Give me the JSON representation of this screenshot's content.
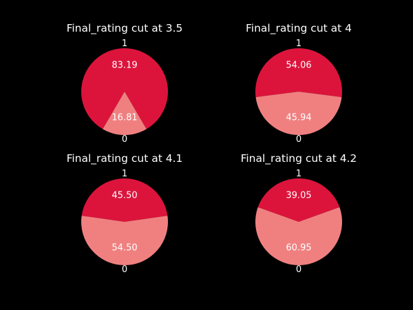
{
  "background_color": "#000000",
  "chart_data": [
    {
      "type": "pie",
      "title": "Final_rating cut at 3.5",
      "slices": [
        {
          "label": "1",
          "value": 83.19,
          "display": "83.19",
          "color": "#dc143c"
        },
        {
          "label": "0",
          "value": 16.81,
          "display": "16.81",
          "color": "#f08080"
        }
      ]
    },
    {
      "type": "pie",
      "title": "Final_rating cut at 4",
      "slices": [
        {
          "label": "1",
          "value": 54.06,
          "display": "54.06",
          "color": "#dc143c"
        },
        {
          "label": "0",
          "value": 45.94,
          "display": "45.94",
          "color": "#f08080"
        }
      ]
    },
    {
      "type": "pie",
      "title": "Final_rating cut at 4.1",
      "slices": [
        {
          "label": "1",
          "value": 45.5,
          "display": "45.50",
          "color": "#dc143c"
        },
        {
          "label": "0",
          "value": 54.5,
          "display": "54.50",
          "color": "#f08080"
        }
      ]
    },
    {
      "type": "pie",
      "title": "Final_rating cut at 4.2",
      "slices": [
        {
          "label": "1",
          "value": 39.05,
          "display": "39.05",
          "color": "#dc143c"
        },
        {
          "label": "0",
          "value": 60.95,
          "display": "60.95",
          "color": "#f08080"
        }
      ]
    }
  ]
}
